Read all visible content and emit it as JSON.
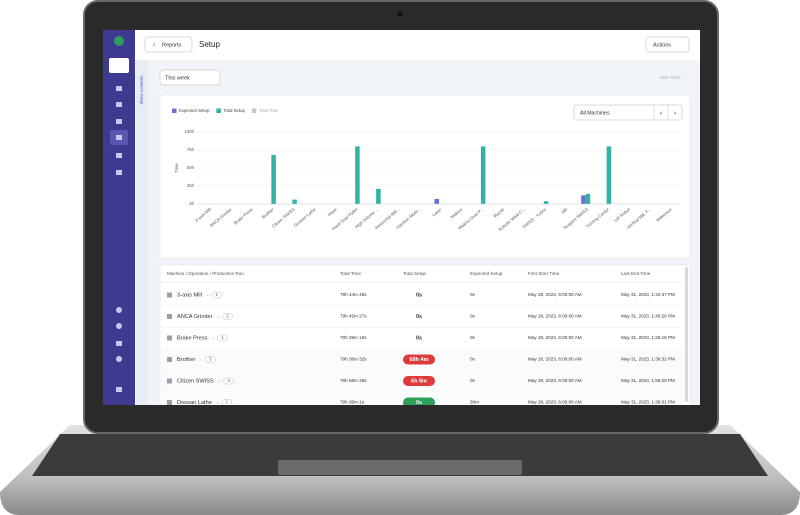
{
  "header": {
    "back": "Reports",
    "title": "Setup",
    "actions": "Actions"
  },
  "controls": {
    "period": "This week",
    "show_controls": "Show Controls",
    "hide_chart": "Hide Chart",
    "machine_filter": "All Machines"
  },
  "chart_data": {
    "type": "bar",
    "ylabel": "Time",
    "categories": [
      "3-axis Mill",
      "ANCA Grinder",
      "Brake Press",
      "Brother",
      "Citizen SWISS",
      "Doosan Lathe",
      "Haas",
      "Haas Dual Pallet",
      "High Volume ...",
      "Horizontal Mill...",
      "Injection Mold...",
      "Laser",
      "Makino",
      "Makino Dual P...",
      "Mazak",
      "Robotic Weld C...",
      "SWISS - Yusho",
      "tdb",
      "Tsugami SWISS",
      "Turning Center",
      "UR Robot",
      "Vertical Mill, F...",
      "Wilkerson"
    ],
    "series": [
      {
        "name": "Expected Setup",
        "color": "#6670d6",
        "values": [
          0,
          0,
          0,
          0,
          0,
          0,
          0,
          0,
          0,
          0,
          0,
          7,
          0,
          0,
          0,
          0,
          0,
          0,
          12,
          0,
          0,
          0,
          0
        ]
      },
      {
        "name": "Total Setup",
        "color": "#2fb3a5",
        "values": [
          0,
          0,
          0,
          68.1,
          6.1,
          0,
          0,
          80,
          21,
          0,
          0,
          0,
          0,
          80,
          0,
          0,
          4,
          0,
          14,
          80,
          0,
          0,
          0
        ]
      },
      {
        "name": "Total Time",
        "color": "#c4c7cc",
        "hidden": true,
        "values": [
          null,
          null,
          null,
          null,
          null,
          null,
          null,
          null,
          null,
          null,
          null,
          null,
          null,
          null,
          null,
          null,
          null,
          null,
          null,
          null,
          null,
          null,
          null
        ]
      }
    ],
    "ylim": [
      0,
      100
    ],
    "yticks": [
      {
        "value": 0,
        "label": "0h"
      },
      {
        "value": 25,
        "label": "25h"
      },
      {
        "value": 50,
        "label": "50h"
      },
      {
        "value": 75,
        "label": "75h"
      },
      {
        "value": 100,
        "label": "100h"
      }
    ],
    "grid": true
  },
  "table": {
    "columns": [
      "Machine / Operation / Production Run",
      "Total Time",
      "Total Setup",
      "Expected Setup",
      "First Start Time",
      "Last End Time"
    ],
    "rows": [
      {
        "name": "3-axis Mill",
        "count": 1,
        "total_time": "79h 44m 48s",
        "total_setup": "0s",
        "expected_setup": "0s",
        "first_start": "May 28, 2023, 6:00:00 AM",
        "last_end": "May 31, 2023, 1:44:47 PM"
      },
      {
        "name": "ANCA Grinder",
        "count": 2,
        "total_time": "79h 45m 27s",
        "total_setup": "0s",
        "expected_setup": "0s",
        "first_start": "May 28, 2023, 6:00:00 AM",
        "last_end": "May 31, 2023, 1:45:26 PM"
      },
      {
        "name": "Brake Press",
        "count": 1,
        "total_time": "79h 25m 18s",
        "total_setup": "0s",
        "expected_setup": "0s",
        "first_start": "May 28, 2023, 6:00:00 AM",
        "last_end": "May 31, 2023, 1:25:18 PM"
      },
      {
        "name": "Brother",
        "count": 3,
        "total_time": "79h 36m 32s",
        "total_setup": "68h 4m",
        "setup_color": "#e03b3b",
        "expected_setup": "0s",
        "first_start": "May 28, 2023, 6:00:00 AM",
        "last_end": "May 31, 2023, 1:36:32 PM"
      },
      {
        "name": "Citizen SWISS",
        "count": 4,
        "total_time": "79h 56m 29s",
        "total_setup": "6h 8m",
        "setup_color": "#e03b3b",
        "expected_setup": "0s",
        "first_start": "May 28, 2023, 6:00:00 AM",
        "last_end": "May 31, 2023, 1:56:29 PM"
      },
      {
        "name": "Doosan Lathe",
        "count": 1,
        "total_time": "79h 36m 1s",
        "total_setup": "0s",
        "setup_color": "#2e9e5b",
        "expected_setup": "30m",
        "first_start": "May 28, 2023, 6:00:00 AM",
        "last_end": "May 31, 2023, 1:36:01 PM"
      }
    ]
  }
}
